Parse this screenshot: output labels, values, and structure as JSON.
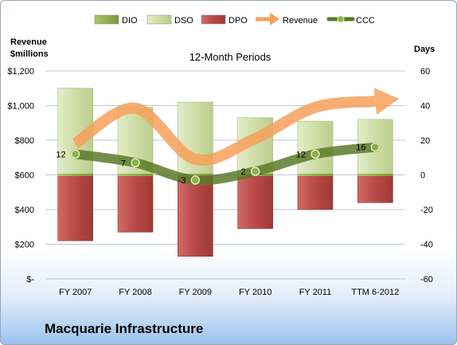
{
  "chart_data": {
    "type": "bar",
    "title": "12-Month Periods",
    "y_left_label": [
      "Revenue",
      "$millions"
    ],
    "y_right_label": "Days",
    "categories": [
      "FY 2007",
      "FY 2008",
      "FY 2009",
      "FY 2010",
      "FY 2011",
      "TTM 6-2012"
    ],
    "y_left_ticks": [
      "$-",
      "$200",
      "$400",
      "$600",
      "$800",
      "$1,000",
      "$1,200"
    ],
    "y_right_ticks": [
      "-60",
      "-40",
      "-20",
      "0",
      "20",
      "40",
      "60"
    ],
    "ylim_right": [
      -60,
      60
    ],
    "ylim_left": [
      0,
      1200
    ],
    "grid": true,
    "legend_position": "top",
    "series": [
      {
        "name": "DIO",
        "kind": "stacked-bar",
        "color": "#8fb04a",
        "values": [
          0,
          0,
          0,
          0,
          0,
          0
        ]
      },
      {
        "name": "DSO",
        "kind": "stacked-bar",
        "color": "#d7e4b5",
        "values": [
          50,
          39,
          42,
          33,
          31,
          32
        ]
      },
      {
        "name": "DPO",
        "kind": "stacked-bar",
        "color": "#c0504d",
        "values": [
          38,
          33,
          47,
          31,
          20,
          16
        ]
      },
      {
        "name": "Revenue",
        "kind": "arrow",
        "color": "#f7a05a",
        "values": [
          780,
          985,
          690,
          810,
          990,
          1025
        ]
      },
      {
        "name": "CCC",
        "kind": "line",
        "color": "#5a7a2a",
        "values": [
          12,
          7,
          -3,
          2,
          12,
          16
        ]
      }
    ],
    "ccc_labels": [
      "12",
      "7",
      "-3",
      "2",
      "12",
      "16"
    ]
  },
  "footer": {
    "company": "Macquarie Infrastructure"
  },
  "colors": {
    "grid": "#bfc7d2",
    "ccc_marker": "#8bb33f",
    "dio_cap": "#6f8f2d"
  }
}
